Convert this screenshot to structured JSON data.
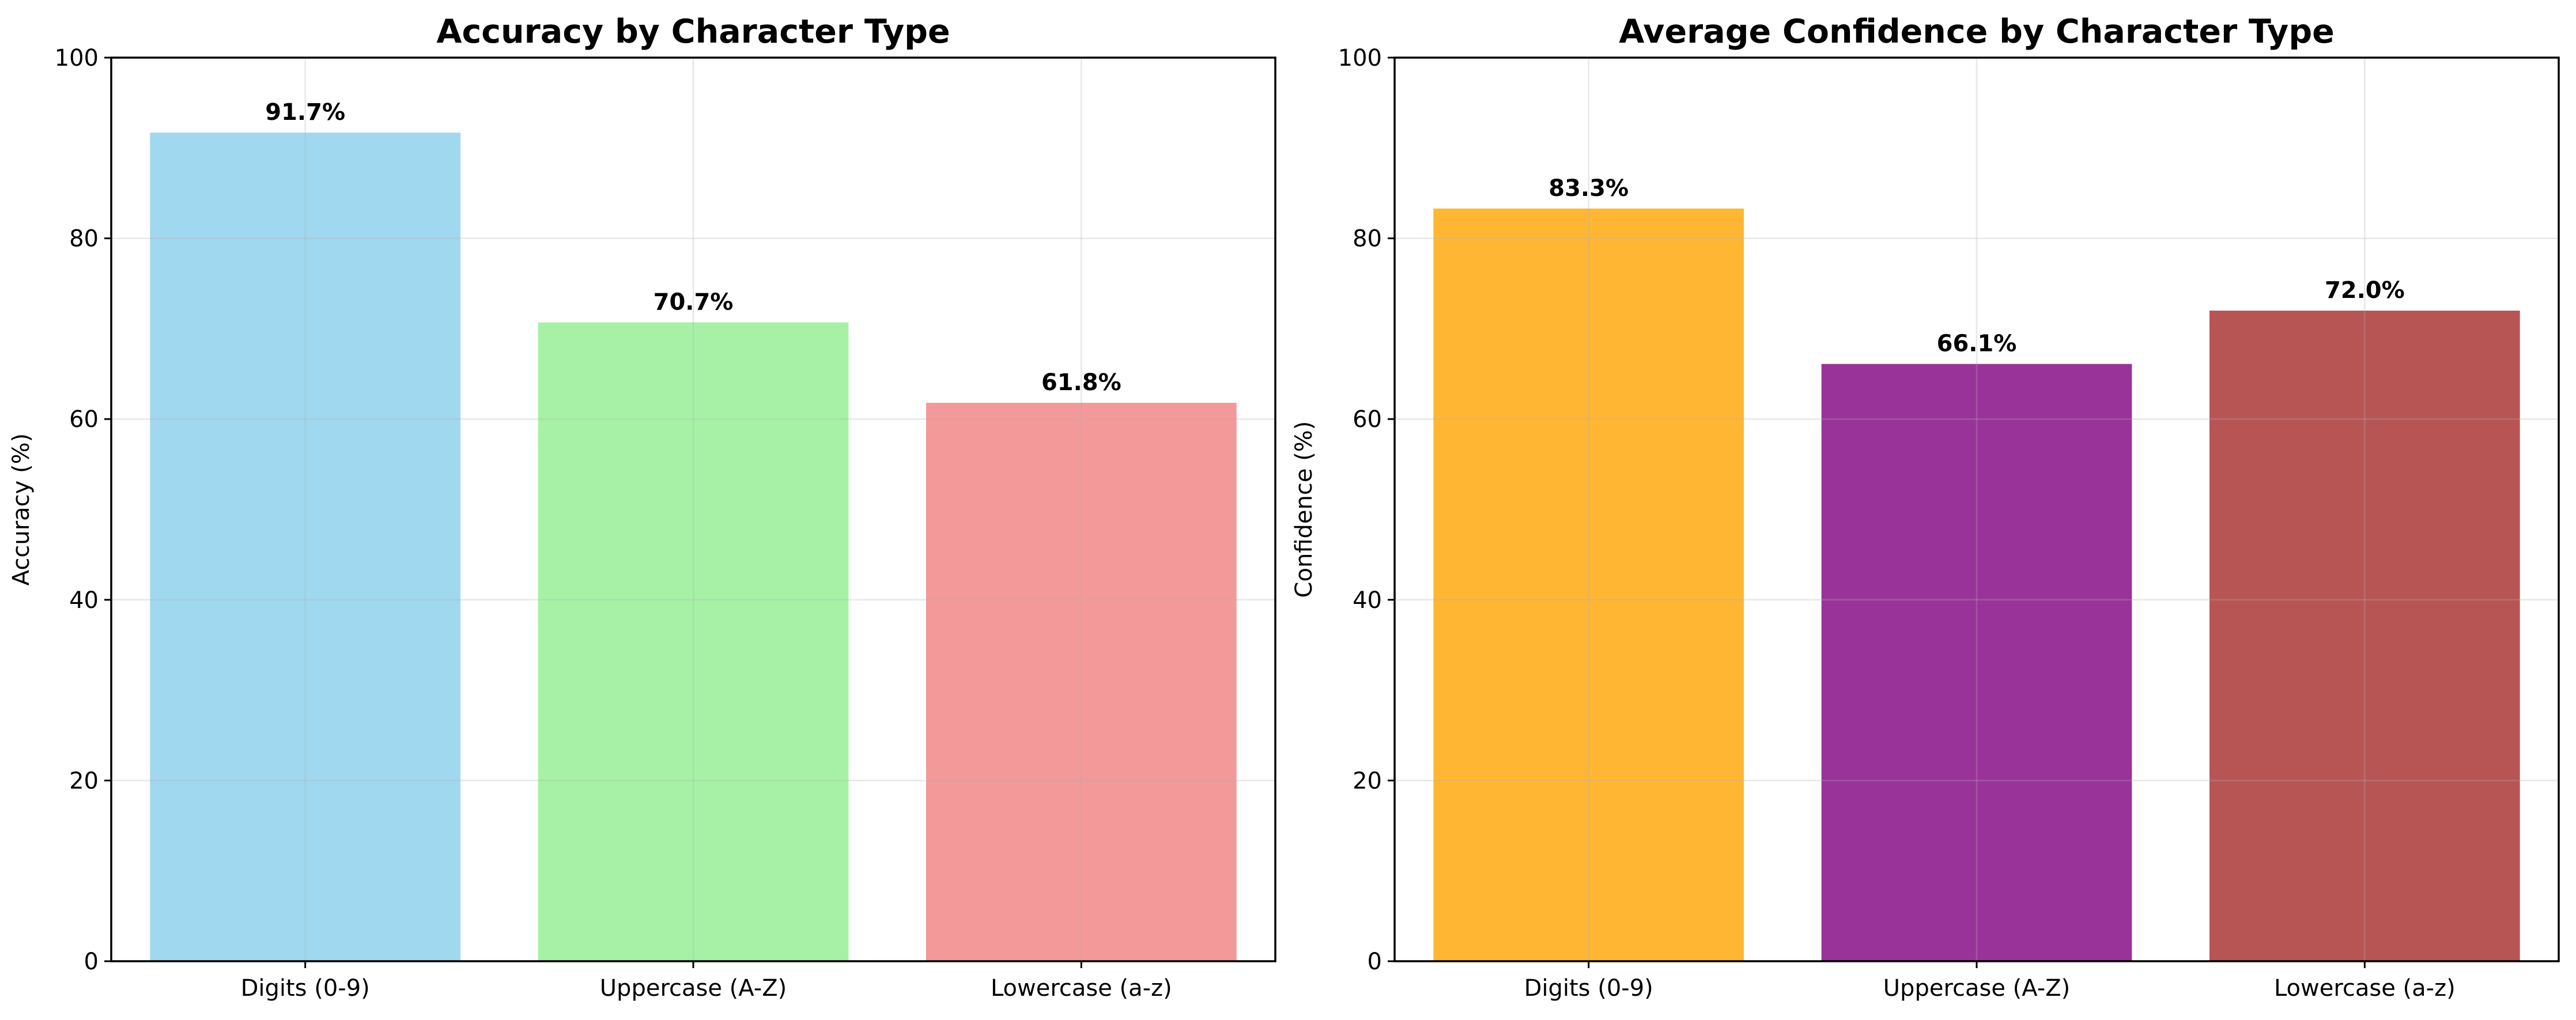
{
  "chart_data": [
    {
      "type": "bar",
      "title": "Accuracy by Character Type",
      "xlabel": "",
      "ylabel": "Accuracy (%)",
      "ylim": [
        0,
        100
      ],
      "yticks": [
        0,
        20,
        40,
        60,
        80,
        100
      ],
      "grid": true,
      "categories": [
        "Digits (0-9)",
        "Uppercase (A-Z)",
        "Lowercase (a-z)"
      ],
      "values": [
        91.7,
        70.7,
        61.8
      ],
      "value_labels": [
        "91.7%",
        "70.7%",
        "61.8%"
      ],
      "colors": [
        "#87CEEB",
        "#90EE90",
        "#F08080"
      ],
      "bar_opacity": 0.8
    },
    {
      "type": "bar",
      "title": "Average Confidence by Character Type",
      "xlabel": "",
      "ylabel": "Confidence (%)",
      "ylim": [
        0,
        100
      ],
      "yticks": [
        0,
        20,
        40,
        60,
        80,
        100
      ],
      "grid": true,
      "categories": [
        "Digits (0-9)",
        "Uppercase (A-Z)",
        "Lowercase (a-z)"
      ],
      "values": [
        83.3,
        66.1,
        72.0
      ],
      "value_labels": [
        "83.3%",
        "66.1%",
        "72.0%"
      ],
      "colors": [
        "#FFA500",
        "#800080",
        "#A52A2A"
      ],
      "bar_opacity": 0.8
    }
  ]
}
